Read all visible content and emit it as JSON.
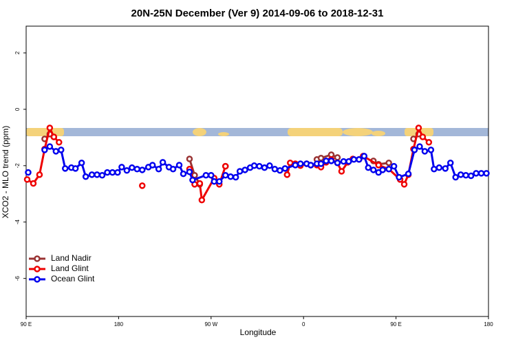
{
  "chart_data": {
    "type": "line",
    "title": "20N-25N December (Ver 9)   2014-09-06 to 2018-12-31",
    "x_label": "Longitude",
    "y_label": "XCO2 - MLO trend (ppm)",
    "xlim": [
      90,
      540
    ],
    "xticks": [
      {
        "value": 90,
        "label": "90 E"
      },
      {
        "value": 180,
        "label": "180"
      },
      {
        "value": 270,
        "label": "90 W"
      },
      {
        "value": 360,
        "label": "0"
      },
      {
        "value": 450,
        "label": "90 E"
      },
      {
        "value": 540,
        "label": "180"
      }
    ],
    "ylim": [
      -7.35,
      2.95
    ],
    "yticks": [
      -6,
      -4,
      -2,
      0,
      2
    ],
    "legend": "bottom-left",
    "series": [
      {
        "name": "Land Nadir",
        "color": "#993333",
        "x": [
          108,
          113,
          117,
          249,
          254,
          259,
          284,
          373,
          377,
          387,
          393,
          428,
          433,
          443,
          467,
          472
        ],
        "values": [
          -1.05,
          -0.88,
          -0.98,
          -1.76,
          -2.34,
          -2.66,
          -2.02,
          -1.78,
          -1.73,
          -1.61,
          -1.71,
          -1.83,
          -1.95,
          -1.9,
          -1.05,
          -0.88
        ]
      },
      {
        "name": "Land Glint",
        "color": "#ee0000",
        "x": [
          91,
          97,
          103,
          108,
          113,
          117,
          122,
          203,
          249,
          254,
          259,
          261,
          273,
          278,
          284,
          344,
          347,
          352,
          357,
          363,
          367,
          373,
          377,
          382,
          387,
          393,
          397,
          403,
          408,
          414,
          418,
          433,
          443,
          454,
          458,
          462,
          467,
          472,
          476,
          482
        ],
        "values": [
          -2.49,
          -2.63,
          -2.32,
          -1.41,
          -0.66,
          -0.98,
          -1.17,
          -2.71,
          -2.12,
          -2.66,
          -2.63,
          -3.22,
          -2.44,
          -2.66,
          -2.02,
          -2.32,
          -1.9,
          -1.93,
          -2.0,
          -1.93,
          -1.98,
          -1.98,
          -2.05,
          -1.88,
          -1.78,
          -1.9,
          -2.2,
          -1.88,
          -1.76,
          -1.78,
          -1.66,
          -1.98,
          -2.12,
          -2.49,
          -2.66,
          -2.32,
          -1.41,
          -0.66,
          -0.98,
          -1.17
        ]
      },
      {
        "name": "Ocean Glint",
        "color": "#0000ee",
        "x": [
          92,
          108,
          113,
          119,
          124,
          128,
          134,
          138,
          144,
          148,
          154,
          159,
          164,
          169,
          174,
          179,
          183,
          188,
          193,
          198,
          203,
          209,
          213,
          219,
          223,
          229,
          233,
          239,
          243,
          249,
          252,
          265,
          270,
          273,
          278,
          284,
          289,
          294,
          298,
          303,
          308,
          312,
          317,
          322,
          327,
          332,
          337,
          342,
          352,
          357,
          363,
          367,
          373,
          377,
          382,
          387,
          393,
          399,
          404,
          409,
          414,
          419,
          423,
          428,
          433,
          437,
          443,
          448,
          453,
          462,
          468,
          473,
          478,
          484,
          487,
          492,
          498,
          503,
          508,
          513,
          518,
          523,
          528,
          533,
          538
        ],
        "values": [
          -2.24,
          -1.44,
          -1.32,
          -1.49,
          -1.44,
          -2.1,
          -2.07,
          -2.1,
          -1.9,
          -2.39,
          -2.32,
          -2.32,
          -2.34,
          -2.24,
          -2.24,
          -2.24,
          -2.05,
          -2.17,
          -2.07,
          -2.12,
          -2.15,
          -2.05,
          -1.98,
          -2.12,
          -1.88,
          -2.05,
          -2.12,
          -1.98,
          -2.29,
          -2.22,
          -2.51,
          -2.34,
          -2.34,
          -2.56,
          -2.56,
          -2.34,
          -2.39,
          -2.41,
          -2.2,
          -2.15,
          -2.07,
          -2.0,
          -2.02,
          -2.07,
          -2.0,
          -2.12,
          -2.17,
          -2.1,
          -1.98,
          -1.93,
          -1.93,
          -1.98,
          -1.93,
          -1.93,
          -1.83,
          -1.83,
          -1.9,
          -1.85,
          -1.85,
          -1.78,
          -1.78,
          -1.66,
          -2.07,
          -2.15,
          -2.24,
          -2.15,
          -2.12,
          -2.02,
          -2.41,
          -2.29,
          -1.44,
          -1.32,
          -1.49,
          -1.44,
          -2.12,
          -2.07,
          -2.1,
          -1.9,
          -2.41,
          -2.32,
          -2.34,
          -2.36,
          -2.27,
          -2.27,
          -2.27
        ]
      }
    ]
  }
}
